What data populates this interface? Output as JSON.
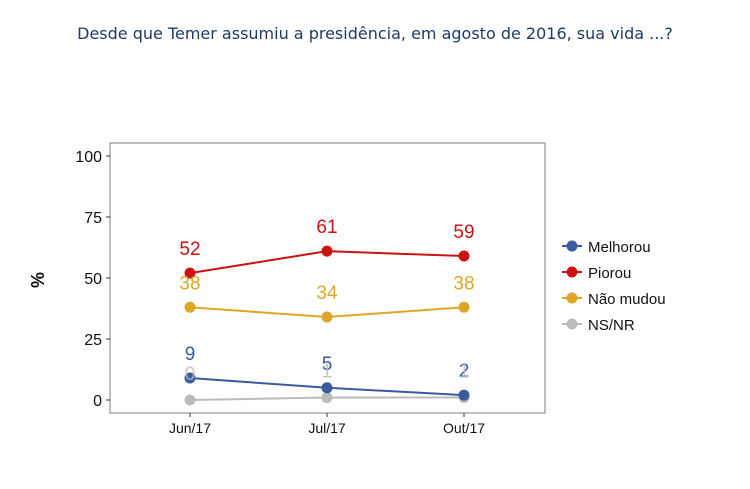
{
  "chart_data": {
    "type": "line",
    "title": "Desde que Temer assumiu a presidência, em agosto de 2016, sua vida ...?",
    "xlabel": "",
    "ylabel": "%",
    "ylim": [
      0,
      100
    ],
    "y_ticks": [
      "0",
      "25",
      "50",
      "75",
      "100"
    ],
    "categories": [
      "Jun/17",
      "Jul/17",
      "Out/17"
    ],
    "series": [
      {
        "name": "Melhorou",
        "values": [
          9,
          5,
          2
        ],
        "color": "#3a5ba0",
        "labels": [
          "9",
          "5",
          "2"
        ]
      },
      {
        "name": "Piorou",
        "values": [
          52,
          61,
          59
        ],
        "color": "#cc1111",
        "labels": [
          "52",
          "61",
          "59"
        ]
      },
      {
        "name": "Não mudou",
        "values": [
          38,
          34,
          38
        ],
        "color": "#e0a526",
        "labels": [
          "38",
          "34",
          "38"
        ]
      },
      {
        "name": "NS/NR",
        "values": [
          0,
          1,
          1
        ],
        "color": "#bbbbbb",
        "labels": [
          "0",
          "1",
          "1"
        ]
      }
    ],
    "grid": false,
    "legend_position": "right"
  }
}
